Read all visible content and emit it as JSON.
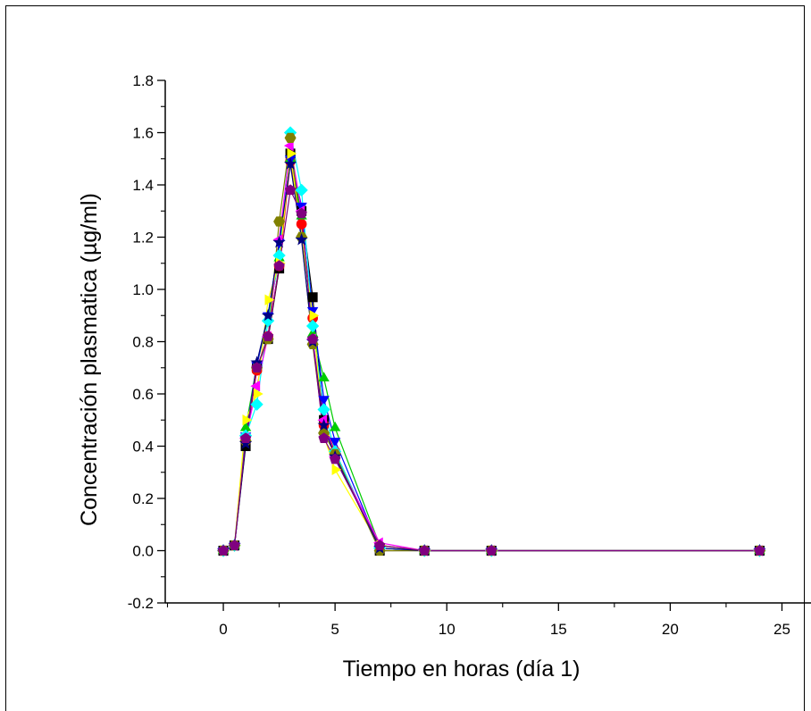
{
  "chart_data": {
    "type": "line",
    "title": "",
    "xlabel": "Tiempo en horas (día 1)",
    "ylabel": "Concentración plasmatica (µg/ml)",
    "xlim": [
      -2.6,
      26.3
    ],
    "ylim": [
      -0.2,
      1.8
    ],
    "xticks": [
      0,
      5,
      10,
      15,
      20,
      25
    ],
    "yticks": [
      -0.2,
      0.0,
      0.2,
      0.4,
      0.6,
      0.8,
      1.0,
      1.2,
      1.4,
      1.6,
      1.8
    ],
    "xtick_labels": [
      "0",
      "5",
      "10",
      "15",
      "20",
      "25"
    ],
    "ytick_labels": [
      "-0.2",
      "0.0",
      "0.2",
      "0.4",
      "0.6",
      "0.8",
      "1.0",
      "1.2",
      "1.4",
      "1.6",
      "1.8"
    ],
    "grid": false,
    "legend": "none",
    "x": [
      0,
      0.5,
      1,
      1.5,
      2,
      2.5,
      3,
      3.5,
      4,
      4.5,
      5,
      7,
      9,
      12,
      24
    ],
    "series": [
      {
        "color": "#000000",
        "marker": "square",
        "values": [
          0,
          0.02,
          0.4,
          0.7,
          0.81,
          1.08,
          1.52,
          1.3,
          0.97,
          0.5,
          0.37,
          0.0,
          0,
          0,
          0
        ]
      },
      {
        "color": "#ff0000",
        "marker": "circle",
        "values": [
          0,
          0.02,
          0.42,
          0.69,
          0.82,
          1.09,
          1.49,
          1.25,
          0.89,
          0.48,
          0.38,
          0.01,
          0,
          0,
          0
        ]
      },
      {
        "color": "#00cc00",
        "marker": "triangle-up",
        "values": [
          0,
          0.02,
          0.47,
          0.71,
          0.89,
          1.12,
          1.5,
          1.28,
          0.83,
          0.66,
          0.47,
          0.02,
          0,
          0,
          0
        ]
      },
      {
        "color": "#0000ff",
        "marker": "triangle-down",
        "values": [
          0,
          0.02,
          0.44,
          0.71,
          0.9,
          1.18,
          1.5,
          1.32,
          0.92,
          0.58,
          0.42,
          0.01,
          0,
          0,
          0
        ]
      },
      {
        "color": "#00ffff",
        "marker": "diamond",
        "values": [
          0,
          0.02,
          0.44,
          0.56,
          0.88,
          1.13,
          1.6,
          1.38,
          0.86,
          0.54,
          0.38,
          0.01,
          0,
          0,
          0
        ]
      },
      {
        "color": "#ff00ff",
        "marker": "triangle-left",
        "values": [
          0,
          0.02,
          0.43,
          0.63,
          0.82,
          1.19,
          1.55,
          1.3,
          0.81,
          0.5,
          0.36,
          0.03,
          0,
          0,
          0
        ]
      },
      {
        "color": "#ffff00",
        "marker": "triangle-right",
        "values": [
          0,
          0.02,
          0.5,
          0.6,
          0.96,
          1.1,
          1.52,
          1.2,
          0.9,
          0.44,
          0.31,
          0.02,
          0,
          0,
          0
        ]
      },
      {
        "color": "#808000",
        "marker": "hexagon",
        "values": [
          0,
          0.02,
          0.42,
          0.7,
          0.81,
          1.26,
          1.58,
          1.2,
          0.79,
          0.45,
          0.37,
          0.0,
          0,
          0,
          0
        ]
      },
      {
        "color": "#000080",
        "marker": "star",
        "values": [
          0,
          0.02,
          0.41,
          0.72,
          0.9,
          1.18,
          1.48,
          1.19,
          0.8,
          0.48,
          0.36,
          0.01,
          0,
          0,
          0
        ]
      },
      {
        "color": "#800080",
        "marker": "pentagon",
        "values": [
          0,
          0.02,
          0.43,
          0.7,
          0.82,
          1.09,
          1.38,
          1.29,
          0.81,
          0.43,
          0.35,
          0.02,
          0,
          0,
          0
        ]
      }
    ]
  }
}
